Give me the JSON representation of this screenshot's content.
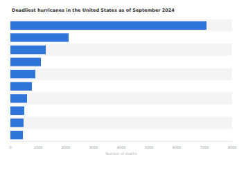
{
  "chart_data": {
    "type": "bar",
    "orientation": "horizontal",
    "title": "Deadliest hurricanes in the United States as of September 2024",
    "x_label": "Number of deaths",
    "categories": [
      null,
      null,
      null,
      null,
      null,
      null,
      null,
      null,
      null,
      null
    ],
    "values": [
      7075,
      2100,
      1275,
      1100,
      900,
      775,
      600,
      500,
      475,
      450
    ],
    "color": "#2f74d8",
    "xlim": [
      0,
      8000
    ],
    "xticks": [
      0,
      1000,
      2000,
      3000,
      4000,
      5000,
      6000,
      7000,
      8000
    ],
    "grid": false
  }
}
